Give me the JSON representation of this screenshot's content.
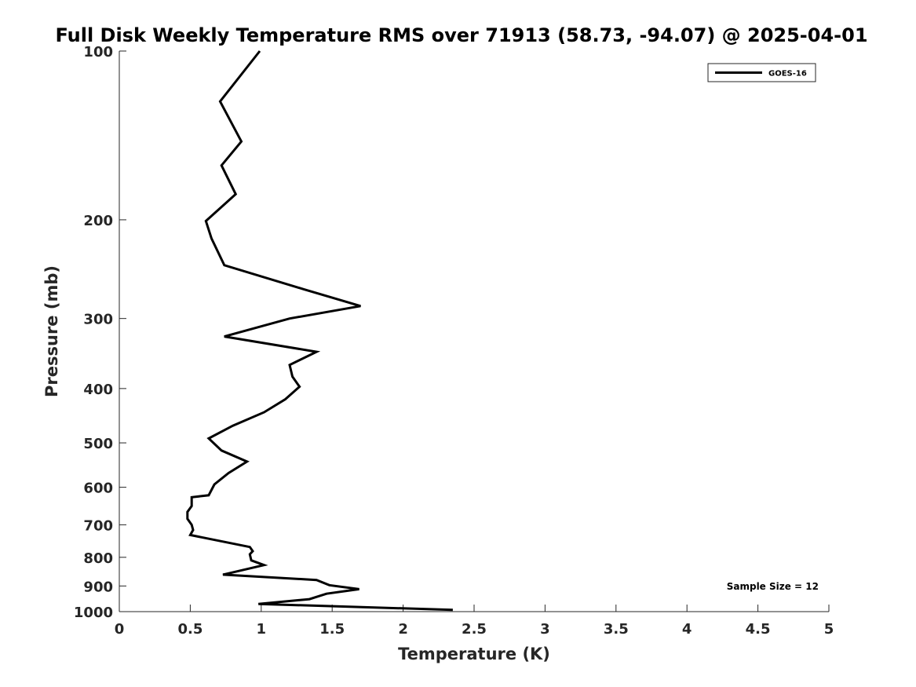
{
  "chart_data": {
    "type": "line",
    "title": "Full Disk Weekly Temperature RMS over 71913 (58.73, -94.07) @ 2025-04-01",
    "xlabel": "Temperature (K)",
    "ylabel": "Pressure (mb)",
    "xlim": [
      0,
      5
    ],
    "ylim": [
      100,
      1000
    ],
    "y_scale": "log",
    "y_direction": "reversed",
    "x_ticks": [
      0,
      0.5,
      1,
      1.5,
      2,
      2.5,
      3,
      3.5,
      4,
      4.5,
      5
    ],
    "x_tick_labels": [
      "0",
      "0.5",
      "1",
      "1.5",
      "2",
      "2.5",
      "3",
      "3.5",
      "4",
      "4.5",
      "5"
    ],
    "y_ticks": [
      100,
      200,
      300,
      400,
      500,
      600,
      700,
      800,
      900,
      1000
    ],
    "y_tick_labels": [
      "100",
      "200",
      "300",
      "400",
      "500",
      "600",
      "700",
      "800",
      "900",
      "1000"
    ],
    "grid": false,
    "legend_position": "top-right",
    "series": [
      {
        "name": "GOES-16",
        "color": "#000000",
        "x": [
          0.99,
          0.71,
          0.86,
          0.72,
          0.82,
          0.61,
          0.65,
          0.74,
          1.3,
          1.7,
          1.2,
          0.74,
          1.39,
          1.2,
          1.22,
          1.27,
          1.17,
          1.02,
          0.8,
          0.63,
          0.72,
          0.9,
          0.77,
          0.67,
          0.63,
          0.51,
          0.51,
          0.48,
          0.48,
          0.51,
          0.52,
          0.5,
          0.92,
          0.94,
          0.92,
          0.93,
          1.02,
          0.73,
          1.39,
          1.48,
          1.69,
          1.46,
          1.34,
          0.98,
          2.35
        ],
        "y": [
          100,
          123,
          145,
          160,
          180,
          201,
          216,
          241,
          266,
          285,
          300,
          323,
          344,
          363,
          381,
          397,
          418,
          441,
          466,
          491,
          516,
          540,
          566,
          593,
          620,
          625,
          648,
          664,
          683,
          700,
          715,
          730,
          767,
          780,
          790,
          810,
          826,
          859,
          878,
          897,
          912,
          929,
          950,
          969,
          993
        ]
      }
    ],
    "annotations": [
      {
        "text": "Sample Size = 12",
        "position": "bottom-right"
      }
    ]
  }
}
